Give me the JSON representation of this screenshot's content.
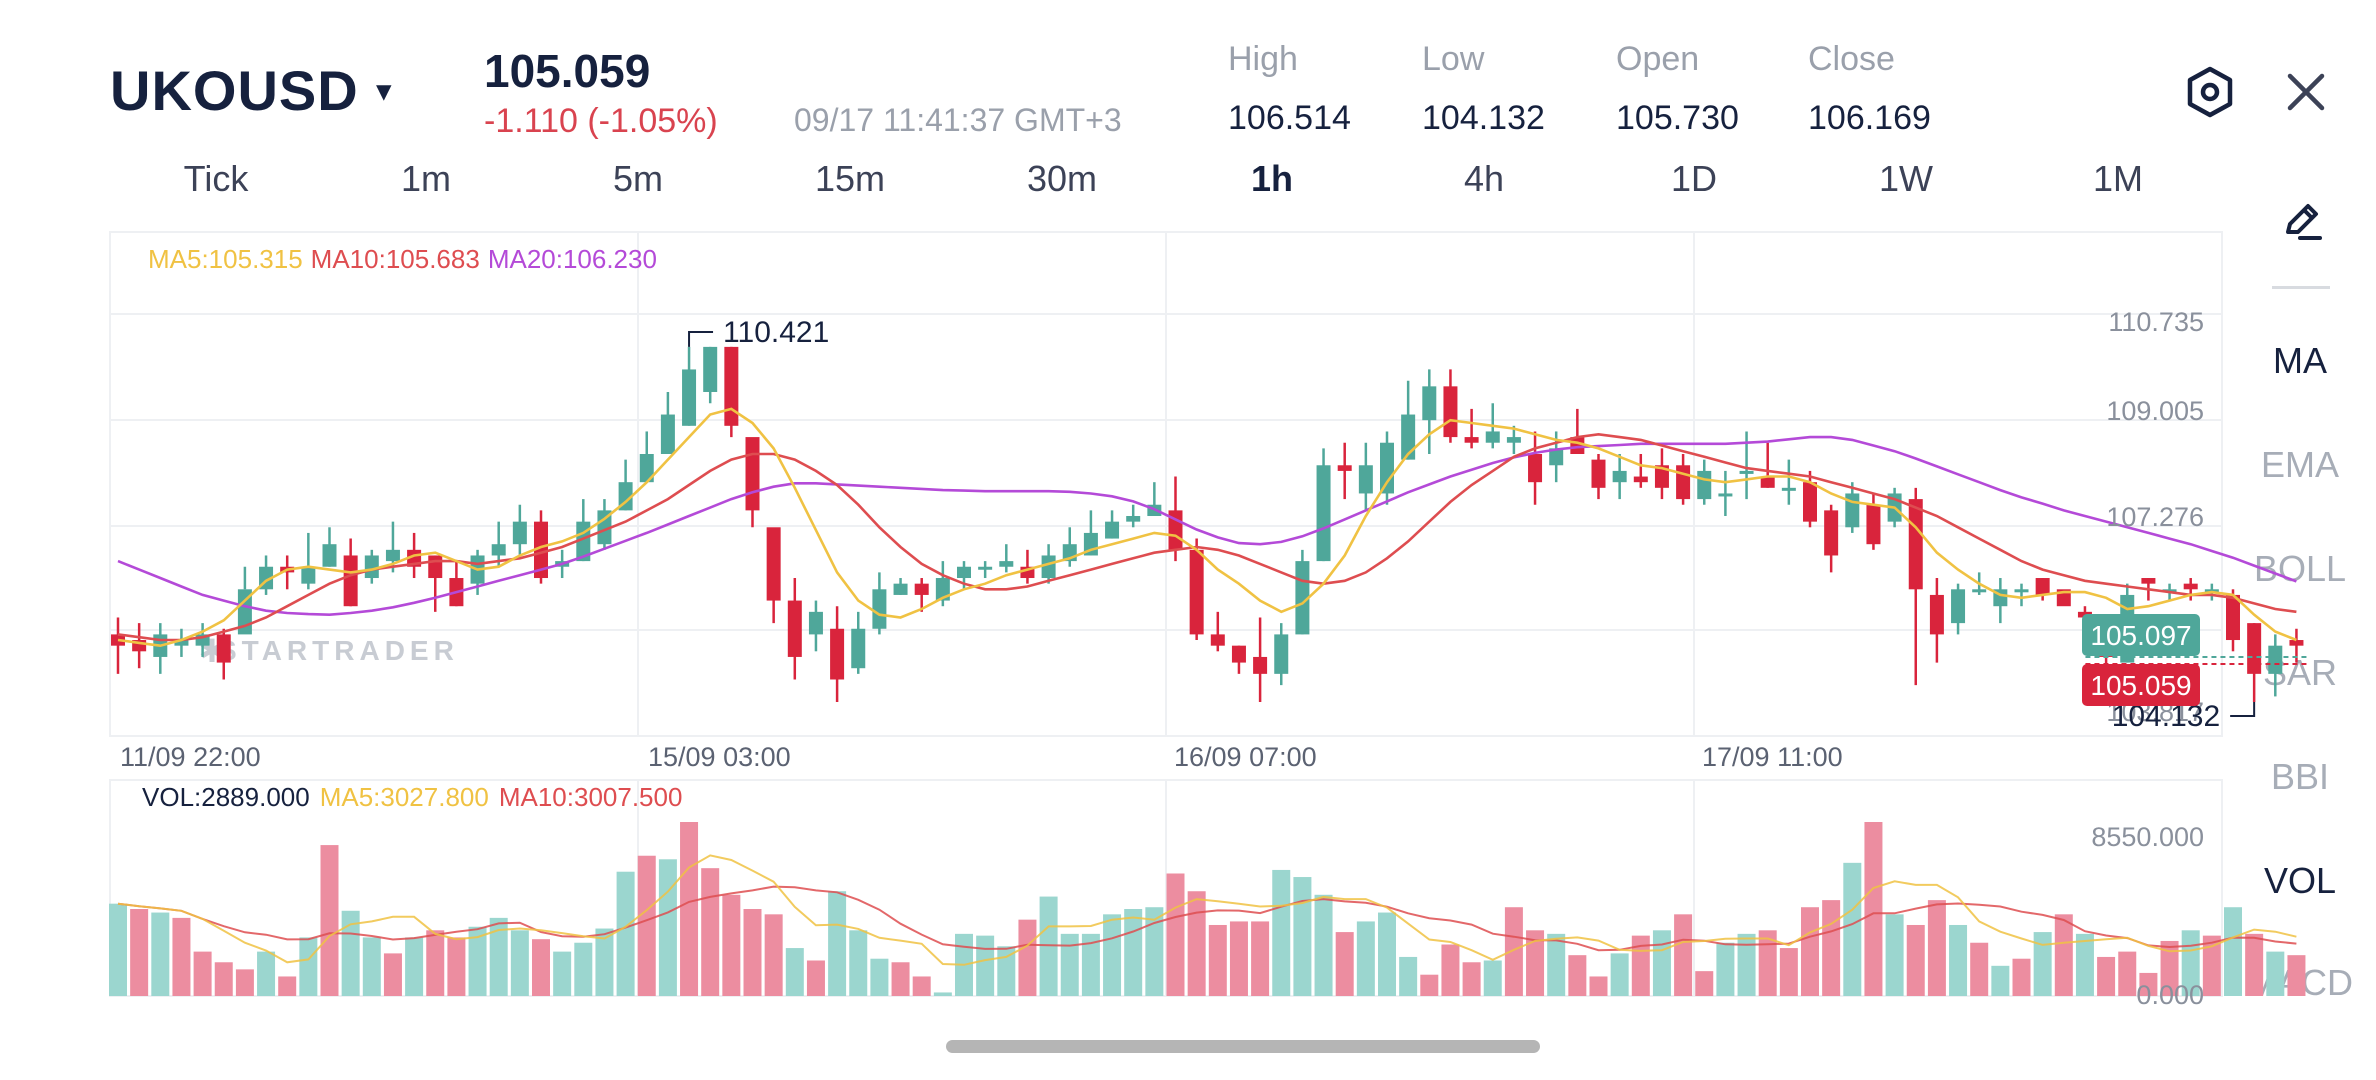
{
  "header": {
    "symbol": "UKOUSD",
    "caret": "▾",
    "price": "105.059",
    "change": "-1.110 (-1.05%)",
    "time": "09/17 11:41:37 GMT+3",
    "high_label": "High",
    "high": "106.514",
    "low_label": "Low",
    "low": "104.132",
    "open_label": "Open",
    "open": "105.730",
    "close_label": "Close",
    "close": "106.169",
    "settings_icon": "hexagon-settings-icon",
    "close_icon": "close-icon"
  },
  "timeframes": [
    "Tick",
    "1m",
    "5m",
    "15m",
    "30m",
    "1h",
    "4h",
    "1D",
    "1W",
    "1M"
  ],
  "active_timeframe": "1h",
  "indicators_menu": {
    "draw_icon": "pencil-draw-icon",
    "items": [
      "MA",
      "EMA",
      "BOLL",
      "SAR",
      "BBI",
      "VOL",
      "MACD"
    ],
    "active": [
      "MA",
      "VOL"
    ]
  },
  "ma_legend": {
    "ma5": "MA5:105.315",
    "ma10": "MA10:105.683",
    "ma20": "MA20:106.230"
  },
  "vol_legend": {
    "vol": "VOL:2889.000",
    "ma5": "MA5:3027.800",
    "ma10": "MA10:3007.500"
  },
  "watermark": "STARTRADER",
  "colors": {
    "up": "#4fa79a",
    "down": "#d9243c",
    "ma5": "#f0c243",
    "ma10": "#de4d50",
    "ma20": "#b44ad8",
    "vol_up": "#9bd6cf",
    "vol_down": "#ec8da0"
  },
  "chart_data": {
    "type": "candlestick",
    "y_ticks": [
      "110.735",
      "109.005",
      "107.276",
      "103.817"
    ],
    "ylim": [
      103.817,
      110.735
    ],
    "x_ticks": [
      "11/09 22:00",
      "15/09 03:00",
      "16/09 07:00",
      "17/09 11:00"
    ],
    "max_label": "110.421",
    "min_label": "104.132",
    "bid_label": "105.097",
    "ask_label": "105.059",
    "candles": [
      [
        105.3,
        105.1,
        105.6,
        104.6
      ],
      [
        105.2,
        105.0,
        105.5,
        104.7
      ],
      [
        104.9,
        105.3,
        105.5,
        104.6
      ],
      [
        105.1,
        105.2,
        105.4,
        104.9
      ],
      [
        105.1,
        105.3,
        105.5,
        104.9
      ],
      [
        105.3,
        104.8,
        105.4,
        104.5
      ],
      [
        105.3,
        106.1,
        106.5,
        106.1
      ],
      [
        106.1,
        106.5,
        106.7,
        106.0
      ],
      [
        106.5,
        106.4,
        106.7,
        106.1
      ],
      [
        106.2,
        106.5,
        107.1,
        106.1
      ],
      [
        106.5,
        106.9,
        107.2,
        106.5
      ],
      [
        106.7,
        105.8,
        107.0,
        105.8
      ],
      [
        106.3,
        106.7,
        106.8,
        106.2
      ],
      [
        106.6,
        106.8,
        107.3,
        106.4
      ],
      [
        106.8,
        106.5,
        107.1,
        106.3
      ],
      [
        106.7,
        106.3,
        106.7,
        105.7
      ],
      [
        106.3,
        105.8,
        106.6,
        105.8
      ],
      [
        106.2,
        106.7,
        106.8,
        106.0
      ],
      [
        106.7,
        106.9,
        107.3,
        106.5
      ],
      [
        106.9,
        107.3,
        107.6,
        106.7
      ],
      [
        107.3,
        106.3,
        107.5,
        106.2
      ],
      [
        106.5,
        106.6,
        106.8,
        106.3
      ],
      [
        106.6,
        107.3,
        107.7,
        106.6
      ],
      [
        106.9,
        107.5,
        107.7,
        106.8
      ],
      [
        107.5,
        108.0,
        108.4,
        107.5
      ],
      [
        108.0,
        108.5,
        108.9,
        108.0
      ],
      [
        108.5,
        109.2,
        109.6,
        108.5
      ],
      [
        109.0,
        110.0,
        110.4,
        109.0
      ],
      [
        109.6,
        110.4,
        110.4,
        109.4
      ],
      [
        110.4,
        109.0,
        110.4,
        108.8
      ],
      [
        108.8,
        107.5,
        108.5,
        107.2
      ],
      [
        107.2,
        105.9,
        107.1,
        105.5
      ],
      [
        105.9,
        104.9,
        106.3,
        104.5
      ],
      [
        105.3,
        105.7,
        105.9,
        105.0
      ],
      [
        105.4,
        104.5,
        105.8,
        104.1
      ],
      [
        104.7,
        105.4,
        105.7,
        104.6
      ],
      [
        105.4,
        106.1,
        106.4,
        105.3
      ],
      [
        106.0,
        106.2,
        106.3,
        106.0
      ],
      [
        106.2,
        106.0,
        106.3,
        105.7
      ],
      [
        105.9,
        106.3,
        106.6,
        105.8
      ],
      [
        106.3,
        106.5,
        106.6,
        106.1
      ],
      [
        106.5,
        106.5,
        106.6,
        106.3
      ],
      [
        106.5,
        106.6,
        106.9,
        106.4
      ],
      [
        106.5,
        106.3,
        106.8,
        106.2
      ],
      [
        106.3,
        106.7,
        106.9,
        106.2
      ],
      [
        106.6,
        106.9,
        107.2,
        106.5
      ],
      [
        106.7,
        107.1,
        107.5,
        106.7
      ],
      [
        107.0,
        107.3,
        107.5,
        107.0
      ],
      [
        107.3,
        107.4,
        107.6,
        107.2
      ],
      [
        107.4,
        107.6,
        108.0,
        107.4
      ],
      [
        107.5,
        106.8,
        108.1,
        106.6
      ],
      [
        106.8,
        105.3,
        107.0,
        105.2
      ],
      [
        105.3,
        105.1,
        105.7,
        105.0
      ],
      [
        105.1,
        104.8,
        105.1,
        104.6
      ],
      [
        104.9,
        104.6,
        105.6,
        104.1
      ],
      [
        104.6,
        105.3,
        105.5,
        104.4
      ],
      [
        105.3,
        106.6,
        106.8,
        105.3
      ],
      [
        106.6,
        108.3,
        108.6,
        106.6
      ],
      [
        108.3,
        108.2,
        108.7,
        107.7
      ],
      [
        107.8,
        108.3,
        108.7,
        107.5
      ],
      [
        107.8,
        108.7,
        108.9,
        107.6
      ],
      [
        108.4,
        109.2,
        109.8,
        108.4
      ],
      [
        109.1,
        109.7,
        110.0,
        108.5
      ],
      [
        109.7,
        108.8,
        110.0,
        108.7
      ],
      [
        108.8,
        108.7,
        109.3,
        108.6
      ],
      [
        108.7,
        108.9,
        109.4,
        108.6
      ],
      [
        108.7,
        108.8,
        109.0,
        108.5
      ],
      [
        108.5,
        108.0,
        108.9,
        107.6
      ],
      [
        108.3,
        108.6,
        108.9,
        108.0
      ],
      [
        108.8,
        108.5,
        109.3,
        108.5
      ],
      [
        108.4,
        107.9,
        108.5,
        107.7
      ],
      [
        108.0,
        108.2,
        108.5,
        107.7
      ],
      [
        108.1,
        108.0,
        108.5,
        107.9
      ],
      [
        108.3,
        107.9,
        108.6,
        107.7
      ],
      [
        108.3,
        107.7,
        108.5,
        107.6
      ],
      [
        107.7,
        108.2,
        108.4,
        107.6
      ],
      [
        107.8,
        107.8,
        108.2,
        107.4
      ],
      [
        108.2,
        108.2,
        108.9,
        107.7
      ],
      [
        108.1,
        107.9,
        108.7,
        107.9
      ],
      [
        107.9,
        107.9,
        108.4,
        107.6
      ],
      [
        108.0,
        107.3,
        108.2,
        107.2
      ],
      [
        107.5,
        106.7,
        107.6,
        106.4
      ],
      [
        107.2,
        107.8,
        108.0,
        107.1
      ],
      [
        107.6,
        106.9,
        107.8,
        106.8
      ],
      [
        107.3,
        107.8,
        107.9,
        107.2
      ],
      [
        107.7,
        106.1,
        107.9,
        104.4
      ],
      [
        106.0,
        105.3,
        106.3,
        104.8
      ],
      [
        105.5,
        106.1,
        106.2,
        105.3
      ],
      [
        106.1,
        106.1,
        106.4,
        106.0
      ],
      [
        105.8,
        106.1,
        106.3,
        105.5
      ],
      [
        106.1,
        106.1,
        106.2,
        105.8
      ],
      [
        106.3,
        106.0,
        106.3,
        105.9
      ],
      [
        106.1,
        105.8,
        106.0,
        105.9
      ],
      [
        105.7,
        105.6,
        105.8,
        105.5
      ],
      [
        105.4,
        104.9,
        105.5,
        104.4
      ],
      [
        104.8,
        106.0,
        106.2,
        104.8
      ],
      [
        106.3,
        106.2,
        106.3,
        105.9
      ],
      [
        106.1,
        106.1,
        106.2,
        105.9
      ],
      [
        106.2,
        106.1,
        106.3,
        105.9
      ],
      [
        106.1,
        106.1,
        106.2,
        105.9
      ],
      [
        106.0,
        105.2,
        106.1,
        105.0
      ],
      [
        105.5,
        104.6,
        105.5,
        104.1
      ],
      [
        104.6,
        105.1,
        105.3,
        104.2
      ],
      [
        105.2,
        105.1,
        105.4,
        104.8
      ]
    ],
    "ma5": [
      105.2,
      105.15,
      105.1,
      105.2,
      105.35,
      105.55,
      105.9,
      106.25,
      106.45,
      106.5,
      106.45,
      106.4,
      106.45,
      106.55,
      106.7,
      106.75,
      106.6,
      106.45,
      106.5,
      106.7,
      106.85,
      106.95,
      107.1,
      107.35,
      107.65,
      108.0,
      108.4,
      108.8,
      109.2,
      109.3,
      109.05,
      108.6,
      107.9,
      107.15,
      106.4,
      105.9,
      105.65,
      105.6,
      105.75,
      105.95,
      106.1,
      106.2,
      106.35,
      106.45,
      106.55,
      106.65,
      106.8,
      106.9,
      107.0,
      107.1,
      107.05,
      106.8,
      106.45,
      106.2,
      105.9,
      105.7,
      105.85,
      106.2,
      106.7,
      107.4,
      108.0,
      108.5,
      108.85,
      109.1,
      109.05,
      109.0,
      108.95,
      108.85,
      108.75,
      108.7,
      108.6,
      108.45,
      108.3,
      108.25,
      108.15,
      108.05,
      108.0,
      108.05,
      108.1,
      108.1,
      108.0,
      107.8,
      107.65,
      107.6,
      107.55,
      107.2,
      106.75,
      106.45,
      106.2,
      106.0,
      105.95,
      106.0,
      106.05,
      106.05,
      105.95,
      105.75,
      105.8,
      105.9,
      106.0,
      106.05,
      106.0,
      105.65,
      105.35,
      105.2
    ],
    "ma10": [
      105.3,
      105.25,
      105.2,
      105.2,
      105.25,
      105.35,
      105.45,
      105.6,
      105.8,
      106.0,
      106.2,
      106.35,
      106.45,
      106.5,
      106.55,
      106.6,
      106.6,
      106.55,
      106.6,
      106.65,
      106.75,
      106.85,
      107.0,
      107.15,
      107.3,
      107.5,
      107.7,
      107.95,
      108.2,
      108.4,
      108.5,
      108.5,
      108.4,
      108.2,
      107.95,
      107.6,
      107.2,
      106.85,
      106.55,
      106.35,
      106.2,
      106.1,
      106.1,
      106.15,
      106.25,
      106.35,
      106.45,
      106.55,
      106.65,
      106.75,
      106.8,
      106.85,
      106.8,
      106.7,
      106.55,
      106.4,
      106.25,
      106.2,
      106.25,
      106.4,
      106.65,
      106.95,
      107.3,
      107.65,
      107.95,
      108.2,
      108.45,
      108.6,
      108.7,
      108.8,
      108.85,
      108.8,
      108.75,
      108.65,
      108.55,
      108.45,
      108.35,
      108.25,
      108.2,
      108.15,
      108.1,
      108.0,
      107.9,
      107.8,
      107.7,
      107.55,
      107.4,
      107.2,
      107.0,
      106.8,
      106.6,
      106.45,
      106.35,
      106.25,
      106.2,
      106.15,
      106.1,
      106.05,
      106.0,
      106.0,
      105.95,
      105.85,
      105.75,
      105.7
    ],
    "ma20": [
      106.6,
      106.45,
      106.3,
      106.15,
      106.0,
      105.9,
      105.8,
      105.72,
      105.68,
      105.66,
      105.65,
      105.68,
      105.72,
      105.78,
      105.86,
      105.95,
      106.05,
      106.15,
      106.25,
      106.35,
      106.45,
      106.55,
      106.68,
      106.82,
      106.96,
      107.1,
      107.25,
      107.4,
      107.55,
      107.7,
      107.82,
      107.92,
      107.98,
      107.98,
      107.96,
      107.94,
      107.92,
      107.9,
      107.88,
      107.86,
      107.85,
      107.84,
      107.84,
      107.84,
      107.84,
      107.83,
      107.8,
      107.75,
      107.66,
      107.52,
      107.34,
      107.16,
      107.02,
      106.92,
      106.9,
      106.94,
      107.04,
      107.18,
      107.34,
      107.5,
      107.66,
      107.82,
      107.96,
      108.1,
      108.22,
      108.34,
      108.44,
      108.52,
      108.58,
      108.62,
      108.64,
      108.66,
      108.68,
      108.68,
      108.68,
      108.68,
      108.68,
      108.7,
      108.72,
      108.76,
      108.8,
      108.8,
      108.75,
      108.65,
      108.55,
      108.42,
      108.28,
      108.14,
      108.0,
      107.86,
      107.73,
      107.62,
      107.5,
      107.4,
      107.3,
      107.2,
      107.1,
      107.0,
      106.9,
      106.78,
      106.66,
      106.52,
      106.38,
      106.24
    ],
    "volume_ymax": "8550.000",
    "volume_ymin": "0.000",
    "volume": [
      5200,
      4900,
      4700,
      4400,
      2500,
      1900,
      1500,
      2500,
      1100,
      3300,
      8500,
      4800,
      3300,
      2400,
      3300,
      3700,
      3300,
      3900,
      4400,
      3700,
      3200,
      2500,
      3000,
      3800,
      7000,
      7900,
      7700,
      9800,
      7200,
      5700,
      4900,
      4600,
      2700,
      2000,
      5900,
      3700,
      2100,
      1900,
      1100,
      200,
      3500,
      3400,
      2800,
      4300,
      5600,
      3500,
      3500,
      4600,
      4900,
      5000,
      6900,
      5900,
      4000,
      4200,
      4200,
      7100,
      6700,
      5700,
      3600,
      4200,
      4700,
      2200,
      1200,
      2900,
      1900,
      2000,
      5000,
      3700,
      3500,
      2300,
      1100,
      2400,
      3400,
      3700,
      4600,
      1400,
      3000,
      3500,
      3700,
      2700,
      5000,
      5400,
      7500,
      9800,
      4600,
      4000,
      5400,
      4000,
      3000,
      1700,
      2100,
      3600,
      4600,
      3500,
      2200,
      2500,
      1300,
      3100,
      3700,
      3400,
      5000,
      3500,
      2500,
      2300
    ],
    "volume_up": [
      true,
      false,
      true,
      false,
      false,
      false,
      false,
      true,
      false,
      true,
      false,
      true,
      true,
      false,
      true,
      false,
      false,
      true,
      true,
      true,
      false,
      true,
      true,
      true,
      true,
      false,
      true,
      false,
      false,
      false,
      false,
      false,
      true,
      false,
      true,
      true,
      true,
      false,
      false,
      true,
      true,
      true,
      true,
      false,
      true,
      true,
      true,
      true,
      true,
      true,
      false,
      false,
      false,
      false,
      false,
      true,
      true,
      true,
      false,
      true,
      true,
      true,
      false,
      false,
      false,
      true,
      false,
      false,
      true,
      false,
      false,
      true,
      false,
      true,
      false,
      false,
      true,
      true,
      false,
      false,
      false,
      false,
      true,
      false,
      true,
      false,
      false,
      true,
      false,
      true,
      false,
      true,
      false,
      true,
      false,
      false,
      false,
      false,
      true,
      false,
      true,
      false,
      true,
      false
    ]
  }
}
